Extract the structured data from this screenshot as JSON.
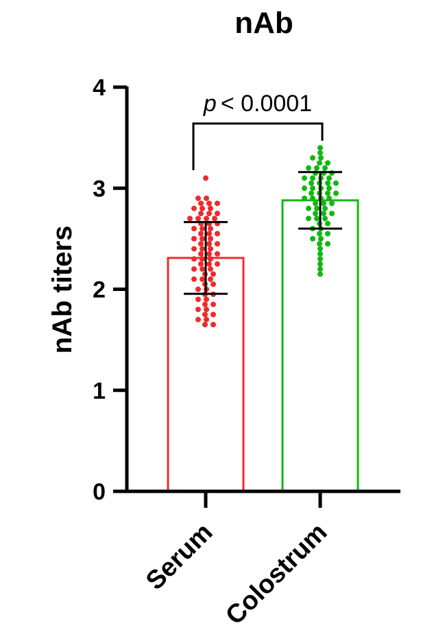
{
  "chart_data": {
    "type": "bar",
    "title": "nAb",
    "ylabel": "nAb titers",
    "xlabel": "",
    "ylim": [
      0,
      4
    ],
    "yticks": [
      0,
      1,
      2,
      3,
      4
    ],
    "categories": [
      "Serum",
      "Colostrum"
    ],
    "values": [
      2.31,
      2.88
    ],
    "sd": [
      0.355,
      0.28
    ],
    "colors": [
      "#ee2b2b",
      "#11b811"
    ],
    "annotation": {
      "italic": "p",
      "rest": "< 0.0001"
    },
    "points": [
      [
        3.1,
        2.9,
        2.9,
        2.85,
        2.85,
        2.85,
        2.8,
        2.8,
        2.8,
        2.75,
        2.75,
        2.75,
        2.7,
        2.7,
        2.7,
        2.7,
        2.65,
        2.65,
        2.65,
        2.6,
        2.6,
        2.6,
        2.55,
        2.55,
        2.55,
        2.5,
        2.5,
        2.5,
        2.45,
        2.45,
        2.45,
        2.4,
        2.4,
        2.4,
        2.35,
        2.35,
        2.35,
        2.3,
        2.3,
        2.3,
        2.25,
        2.25,
        2.25,
        2.2,
        2.2,
        2.2,
        2.15,
        2.15,
        2.1,
        2.1,
        2.1,
        2.05,
        2.05,
        2.0,
        2.0,
        1.95,
        1.95,
        1.9,
        1.9,
        1.85,
        1.85,
        1.8,
        1.8,
        1.75,
        1.75,
        1.7,
        1.7,
        1.65,
        1.65
      ],
      [
        3.4,
        3.35,
        3.3,
        3.3,
        3.25,
        3.25,
        3.2,
        3.2,
        3.2,
        3.15,
        3.15,
        3.15,
        3.1,
        3.1,
        3.1,
        3.1,
        3.05,
        3.05,
        3.05,
        3.05,
        3.0,
        3.0,
        3.0,
        3.0,
        2.95,
        2.95,
        2.95,
        2.95,
        2.9,
        2.9,
        2.9,
        2.9,
        2.85,
        2.85,
        2.85,
        2.8,
        2.8,
        2.8,
        2.75,
        2.75,
        2.75,
        2.7,
        2.7,
        2.7,
        2.65,
        2.65,
        2.6,
        2.6,
        2.55,
        2.55,
        2.5,
        2.5,
        2.45,
        2.45,
        2.4,
        2.35,
        2.3,
        2.25,
        2.2,
        2.15
      ]
    ]
  }
}
